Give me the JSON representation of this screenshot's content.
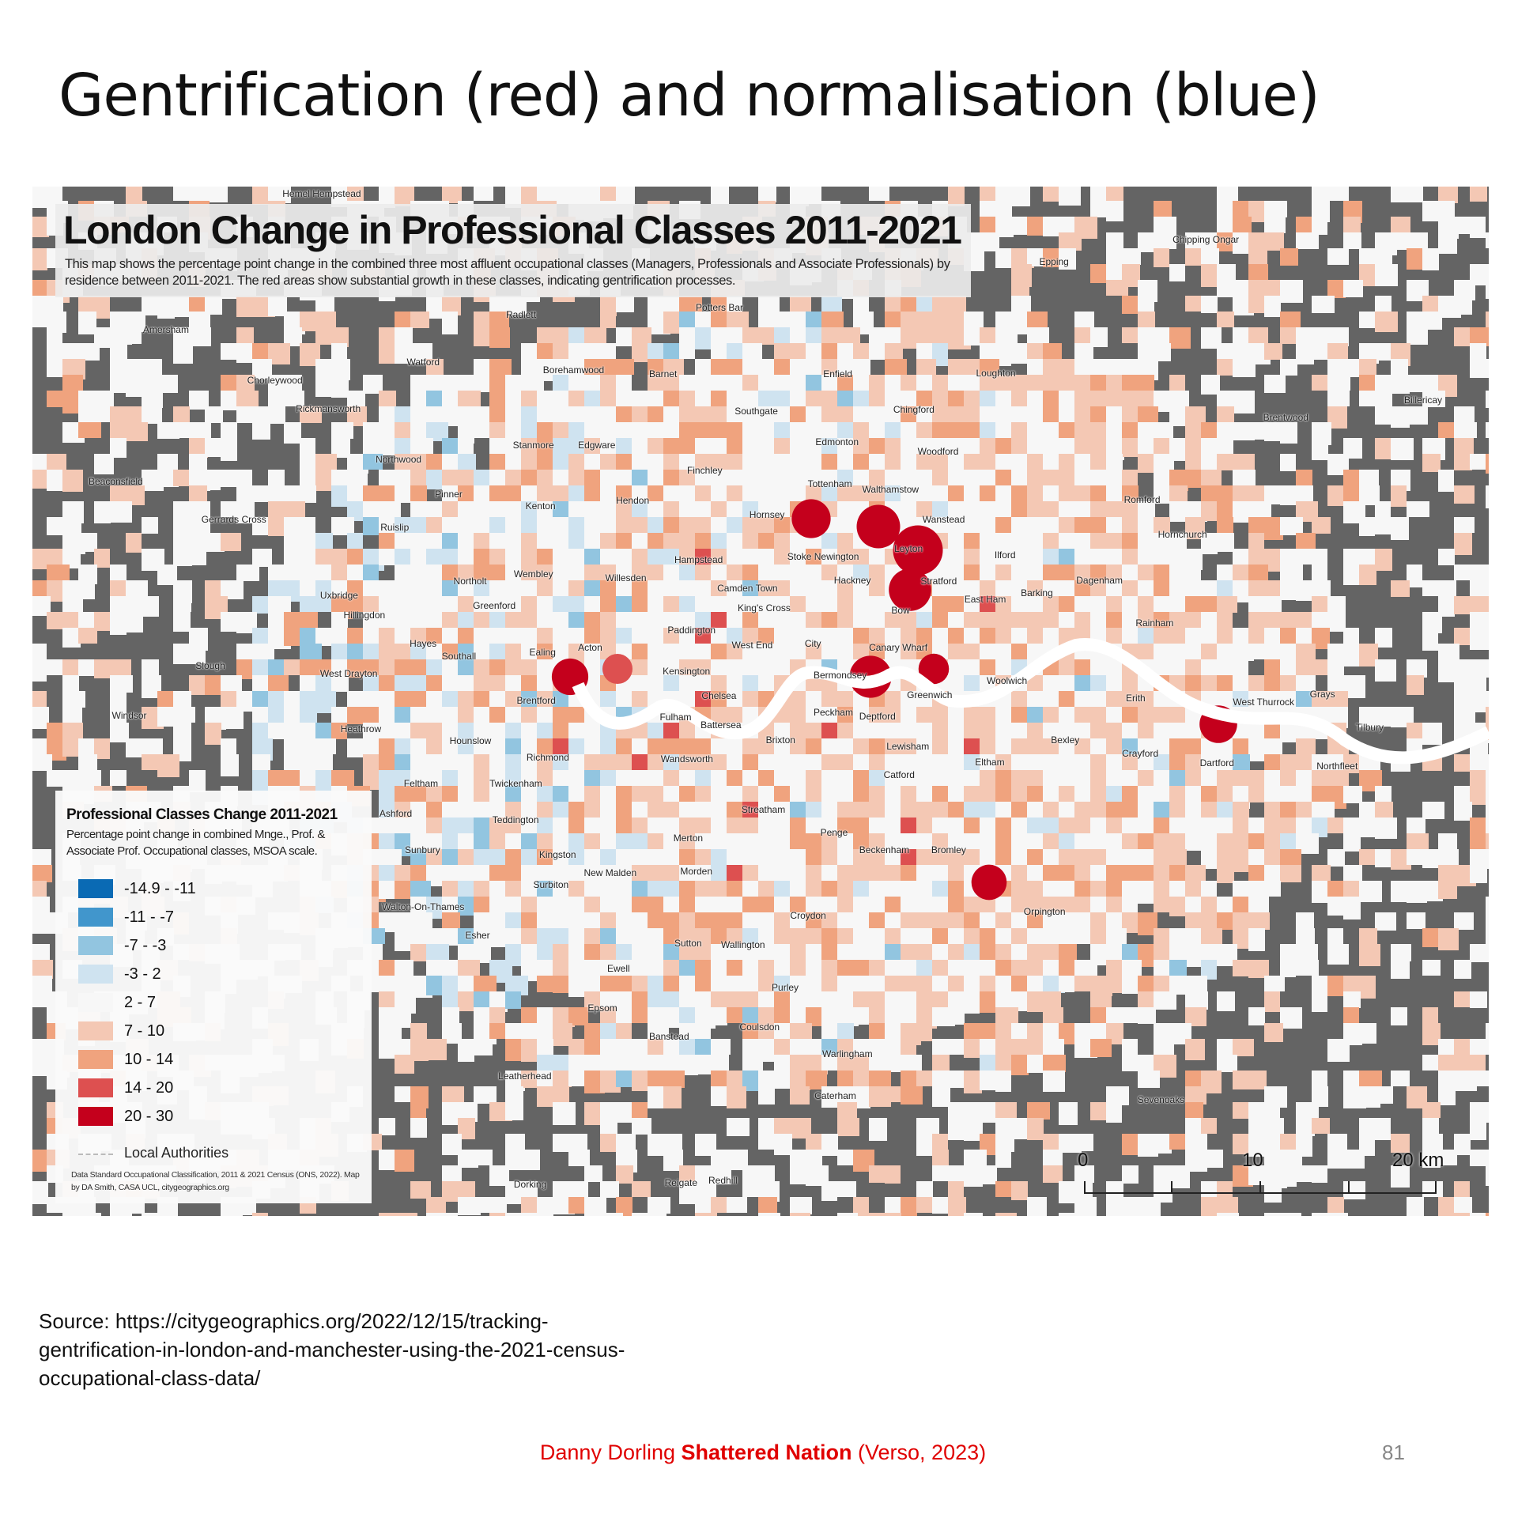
{
  "slide": {
    "title": "Gentrification (red) and normalisation (blue)",
    "source": "Source: https://citygeographics.org/2022/12/15/tracking-gentrification-in-london-and-manchester-using-the-2021-census-occupational-class-data/",
    "footer": {
      "author": "Danny Dorling ",
      "book": "Shattered Nation",
      "publisher": " (Verso, 2023)"
    },
    "page_number": "81"
  },
  "map": {
    "title": "London Change in Professional Classes 2011-2021",
    "description": "This map shows the percentage point change in the combined three most affluent occupational classes (Managers, Professionals and Associate Professionals) by residence between 2011-2021.  The red areas show substantial growth in these classes, indicating gentrification processes.",
    "background_color": "#646464",
    "river_color": "#ffffff",
    "legend": {
      "title": "Professional Classes Change 2011-2021",
      "subtitle": "Percentage point change in combined Mnge., Prof. & Associate Prof. Occupational classes, MSOA scale.",
      "classes": [
        {
          "label": "-14.9 - -11",
          "color": "#0a6ab4"
        },
        {
          "label": "-11 - -7",
          "color": "#4196cc"
        },
        {
          "label": "-7 - -3",
          "color": "#92c5e0"
        },
        {
          "label": "-3 - 2",
          "color": "#cfe3f0"
        },
        {
          "label": "2 - 7",
          "color": "#f7f7f7"
        },
        {
          "label": "7 - 10",
          "color": "#f4c8b4"
        },
        {
          "label": "10 - 14",
          "color": "#f0a37e"
        },
        {
          "label": "14 - 20",
          "color": "#dd5050"
        },
        {
          "label": "20 - 30",
          "color": "#c4001c"
        }
      ],
      "boundary_label": "Local Authorities",
      "credits": "Data Standard Occupational Classification, 2011 & 2021 Census (ONS, 2022). Map by DA Smith, CASA UCL, citygeographics.org"
    },
    "scale_bar": {
      "labels": [
        "0",
        "10",
        "20 km"
      ]
    },
    "places": [
      "Hemel Hempstead",
      "Chipping Ongar",
      "Epping",
      "Potters Bar",
      "Radlett",
      "Amersham",
      "Watford",
      "Borehamwood",
      "Barnet",
      "Enfield",
      "Loughton",
      "Chorleywood",
      "Rickmansworth",
      "Southgate",
      "Chingford",
      "Billericay",
      "Brentwood",
      "Stanmore",
      "Edgware",
      "Edmonton",
      "Woodford",
      "Northwood",
      "Finchley",
      "Tottenham",
      "Walthamstow",
      "Beaconsfield",
      "Pinner",
      "Kenton",
      "Hendon",
      "Hornsey",
      "Wanstead",
      "Romford",
      "Gerrards Cross",
      "Ruislip",
      "Hornchurch",
      "Leyton",
      "Hampstead",
      "Stoke Newington",
      "Ilford",
      "Northolt",
      "Wembley",
      "Willesden",
      "Camden Town",
      "Hackney",
      "Stratford",
      "Dagenham",
      "Uxbridge",
      "Greenford",
      "Barking",
      "East Ham",
      "Hillingdon",
      "King's Cross",
      "Bow",
      "Rainham",
      "Hayes",
      "Paddington",
      "Southall",
      "Ealing",
      "Acton",
      "West End",
      "City",
      "Canary Wharf",
      "Slough",
      "West Drayton",
      "Kensington",
      "Bermondsey",
      "Woolwich",
      "Brentford",
      "Chelsea",
      "Greenwich",
      "Erith",
      "Grays",
      "West Thurrock",
      "Windsor",
      "Heathrow",
      "Fulham",
      "Battersea",
      "Peckham",
      "Deptford",
      "Hounslow",
      "Brixton",
      "Bexley",
      "Tilbury",
      "Richmond",
      "Wandsworth",
      "Lewisham",
      "Crayford",
      "Dartford",
      "Eltham",
      "Northfleet",
      "Feltham",
      "Twickenham",
      "Catford",
      "Streatham",
      "Ashford",
      "Teddington",
      "Merton",
      "Penge",
      "Sunbury",
      "Kingston",
      "Beckenham",
      "Bromley",
      "New Malden",
      "Morden",
      "Surbiton",
      "Walton-On-Thames",
      "Orpington",
      "Croydon",
      "Esher",
      "Sutton",
      "Wallington",
      "Ewell",
      "Purley",
      "Epsom",
      "Coulsdon",
      "Banstead",
      "Warlingham",
      "Leatherhead",
      "Caterham",
      "Sevenoaks",
      "Dorking",
      "Reigate",
      "Redhill"
    ]
  }
}
